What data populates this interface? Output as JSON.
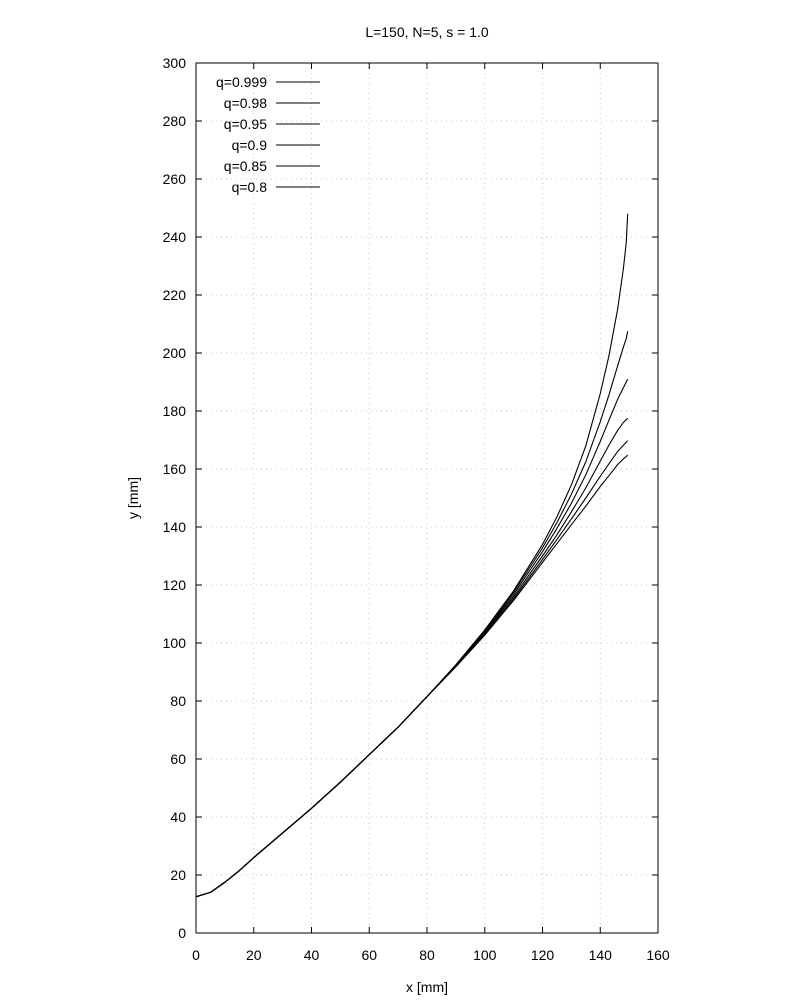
{
  "chart_data": {
    "type": "line",
    "title": "L=150, N=5, s = 1.0",
    "xlabel": "x [mm]",
    "ylabel": "y [mm]",
    "xlim": [
      0,
      160
    ],
    "ylim": [
      0,
      300
    ],
    "xticks": [
      "0",
      "20",
      "40",
      "60",
      "80",
      "100",
      "120",
      "140",
      "160"
    ],
    "yticks": [
      "0",
      "20",
      "40",
      "60",
      "80",
      "100",
      "120",
      "140",
      "160",
      "180",
      "200",
      "220",
      "240",
      "260",
      "280",
      "300"
    ],
    "grid": true,
    "legend_position": "top-left",
    "line_color": "#000000",
    "x": [
      0,
      5,
      10,
      15,
      20,
      30,
      40,
      50,
      60,
      70,
      80,
      90,
      100,
      110,
      120,
      125,
      130,
      135,
      140,
      143,
      146,
      148,
      149,
      149.5
    ],
    "series": [
      {
        "name": "q=0.999",
        "values": [
          12.5,
          14,
          17.5,
          21.5,
          26,
          34.5,
          43,
          52,
          61.5,
          71,
          81.5,
          92.5,
          104.5,
          118,
          134,
          143.5,
          154.5,
          168,
          186,
          199,
          215,
          229,
          238,
          248
        ]
      },
      {
        "name": "q=0.98",
        "values": [
          12.5,
          14,
          17.5,
          21.5,
          26,
          34.5,
          43,
          52,
          61.5,
          71,
          81.5,
          92.3,
          104,
          117.5,
          132.8,
          141.5,
          151.3,
          162.5,
          176.3,
          185.5,
          195.5,
          202,
          205,
          207.5
        ]
      },
      {
        "name": "q=0.95",
        "values": [
          12.5,
          14,
          17.5,
          21.5,
          26,
          34.5,
          43,
          52,
          61.5,
          71,
          81.5,
          92.2,
          103.6,
          116.8,
          131.5,
          139.5,
          148.2,
          158,
          169.5,
          176.8,
          184,
          188,
          190,
          191
        ]
      },
      {
        "name": "q=0.9",
        "values": [
          12.5,
          14,
          17.5,
          21.5,
          26,
          34.5,
          43,
          52,
          61.5,
          71,
          81.5,
          92,
          103.3,
          116,
          130,
          137.3,
          145.2,
          153.5,
          162.7,
          168.2,
          173.3,
          176,
          177,
          177.5
        ]
      },
      {
        "name": "q=0.85",
        "values": [
          12.5,
          14,
          17.5,
          21.5,
          26,
          34.5,
          43,
          52,
          61.5,
          71,
          81.5,
          91.9,
          103,
          115.3,
          128.8,
          135.7,
          142.8,
          150,
          157.5,
          161.8,
          166,
          168.2,
          169.2,
          169.8
        ]
      },
      {
        "name": "q=0.8",
        "values": [
          12.5,
          14,
          17.5,
          21.5,
          26,
          34.5,
          43,
          52,
          61.5,
          71,
          81.5,
          91.8,
          102.7,
          114.7,
          127.8,
          134.3,
          140.8,
          147.2,
          154,
          157.7,
          161.5,
          163.5,
          164.3,
          164.8
        ]
      }
    ]
  }
}
